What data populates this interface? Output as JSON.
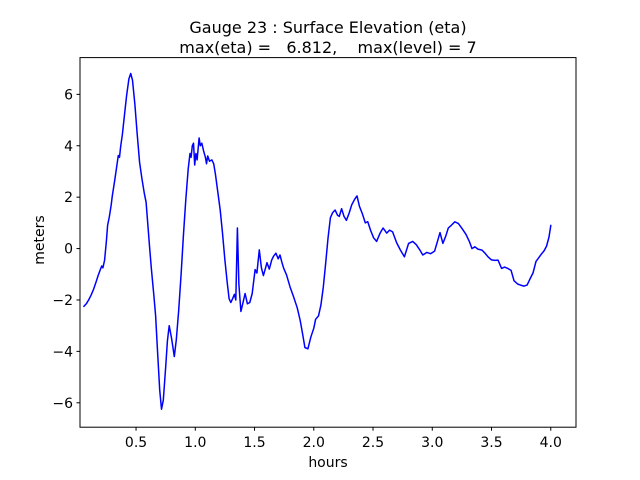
{
  "figure": {
    "title_line1": "Gauge 23 : Surface Elevation (eta)",
    "title_line2": "max(eta) =   6.812,    max(level) = 7"
  },
  "chart_data": {
    "type": "line",
    "title": "Gauge 23 : Surface Elevation (eta)",
    "subtitle": "max(eta) =   6.812,    max(level) = 7",
    "xlabel": "hours",
    "ylabel": "meters",
    "xlim": [
      0.027,
      4.213
    ],
    "ylim": [
      -6.95,
      7.43
    ],
    "xticks": [
      0.5,
      1.0,
      1.5,
      2.0,
      2.5,
      3.0,
      3.5,
      4.0
    ],
    "xtick_labels": [
      "0.5",
      "1.0",
      "1.5",
      "2.0",
      "2.5",
      "3.0",
      "3.5",
      "4.0"
    ],
    "yticks": [
      -6,
      -4,
      -2,
      0,
      2,
      4,
      6
    ],
    "ytick_labels": [
      "−6",
      "−4",
      "−2",
      "0",
      "2",
      "4",
      "6"
    ],
    "grid": false,
    "legend": "none",
    "line_color": "#0000ff",
    "line_width": 1.5,
    "annotations": {
      "max_eta": 6.812,
      "max_level": 7
    },
    "series": [
      {
        "name": "eta",
        "x": [
          0.06,
          0.08,
          0.1,
          0.12,
          0.14,
          0.16,
          0.18,
          0.2,
          0.21,
          0.22,
          0.235,
          0.25,
          0.26,
          0.275,
          0.29,
          0.3,
          0.32,
          0.34,
          0.35,
          0.36,
          0.37,
          0.385,
          0.4,
          0.42,
          0.44,
          0.455,
          0.47,
          0.49,
          0.51,
          0.53,
          0.55,
          0.57,
          0.585,
          0.6,
          0.615,
          0.63,
          0.65,
          0.665,
          0.68,
          0.7,
          0.715,
          0.73,
          0.75,
          0.765,
          0.78,
          0.8,
          0.823,
          0.84,
          0.86,
          0.88,
          0.9,
          0.92,
          0.94,
          0.955,
          0.965,
          0.975,
          0.985,
          0.995,
          1.005,
          1.015,
          1.032,
          1.042,
          1.055,
          1.07,
          1.085,
          1.095,
          1.105,
          1.12,
          1.14,
          1.155,
          1.17,
          1.19,
          1.21,
          1.23,
          1.25,
          1.27,
          1.285,
          1.3,
          1.315,
          1.33,
          1.342,
          1.355,
          1.368,
          1.385,
          1.405,
          1.42,
          1.44,
          1.46,
          1.48,
          1.505,
          1.52,
          1.54,
          1.558,
          1.575,
          1.605,
          1.625,
          1.645,
          1.66,
          1.68,
          1.7,
          1.715,
          1.73,
          1.745,
          1.77,
          1.8,
          1.83,
          1.86,
          1.885,
          1.905,
          1.925,
          1.95,
          1.975,
          2.0,
          2.015,
          2.04,
          2.06,
          2.08,
          2.1,
          2.12,
          2.14,
          2.16,
          2.18,
          2.2,
          2.215,
          2.235,
          2.255,
          2.275,
          2.3,
          2.32,
          2.345,
          2.365,
          2.385,
          2.41,
          2.435,
          2.455,
          2.48,
          2.505,
          2.53,
          2.56,
          2.585,
          2.615,
          2.64,
          2.665,
          2.7,
          2.73,
          2.765,
          2.8,
          2.835,
          2.865,
          2.895,
          2.92,
          2.955,
          2.985,
          3.02,
          3.045,
          3.065,
          3.09,
          3.115,
          3.135,
          3.16,
          3.19,
          3.22,
          3.25,
          3.285,
          3.315,
          3.335,
          3.36,
          3.385,
          3.42,
          3.445,
          3.47,
          3.5,
          3.53,
          3.555,
          3.585,
          3.61,
          3.64,
          3.665,
          3.69,
          3.72,
          3.745,
          3.775,
          3.8,
          3.825,
          3.85,
          3.875,
          3.895,
          3.92,
          3.945,
          3.965,
          3.985,
          4.0
        ],
        "y": [
          -2.25,
          -2.15,
          -2.0,
          -1.82,
          -1.6,
          -1.33,
          -1.05,
          -0.8,
          -0.68,
          -0.75,
          -0.45,
          0.3,
          0.9,
          1.25,
          1.7,
          2.05,
          2.65,
          3.3,
          3.62,
          3.55,
          3.95,
          4.45,
          5.1,
          5.95,
          6.6,
          6.81,
          6.55,
          5.6,
          4.45,
          3.35,
          2.7,
          2.15,
          1.8,
          0.9,
          0.0,
          -0.8,
          -1.8,
          -2.6,
          -3.9,
          -5.5,
          -6.25,
          -5.9,
          -4.6,
          -3.6,
          -3.0,
          -3.5,
          -4.2,
          -3.55,
          -2.4,
          -1.0,
          0.5,
          1.9,
          3.1,
          3.7,
          3.55,
          4.0,
          4.1,
          3.25,
          3.7,
          3.45,
          4.3,
          4.0,
          4.1,
          3.8,
          3.55,
          3.3,
          3.6,
          3.4,
          3.45,
          3.3,
          2.9,
          2.2,
          1.5,
          0.6,
          -0.45,
          -1.35,
          -1.95,
          -2.1,
          -1.95,
          -1.78,
          -2.0,
          0.8,
          -1.4,
          -2.45,
          -2.05,
          -1.75,
          -2.15,
          -2.1,
          -1.75,
          -0.82,
          -0.95,
          -0.05,
          -0.75,
          -1.05,
          -0.55,
          -0.8,
          -0.45,
          -0.3,
          -0.18,
          -0.4,
          -0.25,
          -0.52,
          -0.76,
          -1.02,
          -1.5,
          -1.88,
          -2.3,
          -2.8,
          -3.3,
          -3.85,
          -3.9,
          -3.45,
          -3.1,
          -2.75,
          -2.62,
          -2.2,
          -1.5,
          -0.6,
          0.4,
          1.2,
          1.4,
          1.5,
          1.3,
          1.25,
          1.55,
          1.25,
          1.1,
          1.4,
          1.7,
          1.92,
          2.05,
          1.65,
          1.35,
          1.0,
          1.05,
          0.7,
          0.42,
          0.28,
          0.6,
          0.8,
          0.6,
          0.72,
          0.65,
          0.22,
          -0.05,
          -0.32,
          0.2,
          0.28,
          0.15,
          -0.05,
          -0.25,
          -0.15,
          -0.2,
          -0.1,
          0.3,
          0.62,
          0.2,
          0.5,
          0.8,
          0.9,
          1.04,
          0.98,
          0.79,
          0.55,
          0.25,
          0.0,
          0.07,
          -0.02,
          -0.06,
          -0.18,
          -0.32,
          -0.44,
          -0.46,
          -0.45,
          -0.77,
          -0.72,
          -0.78,
          -0.85,
          -1.25,
          -1.38,
          -1.42,
          -1.46,
          -1.42,
          -1.18,
          -0.95,
          -0.5,
          -0.38,
          -0.22,
          -0.08,
          0.1,
          0.45,
          0.9
        ]
      }
    ]
  }
}
